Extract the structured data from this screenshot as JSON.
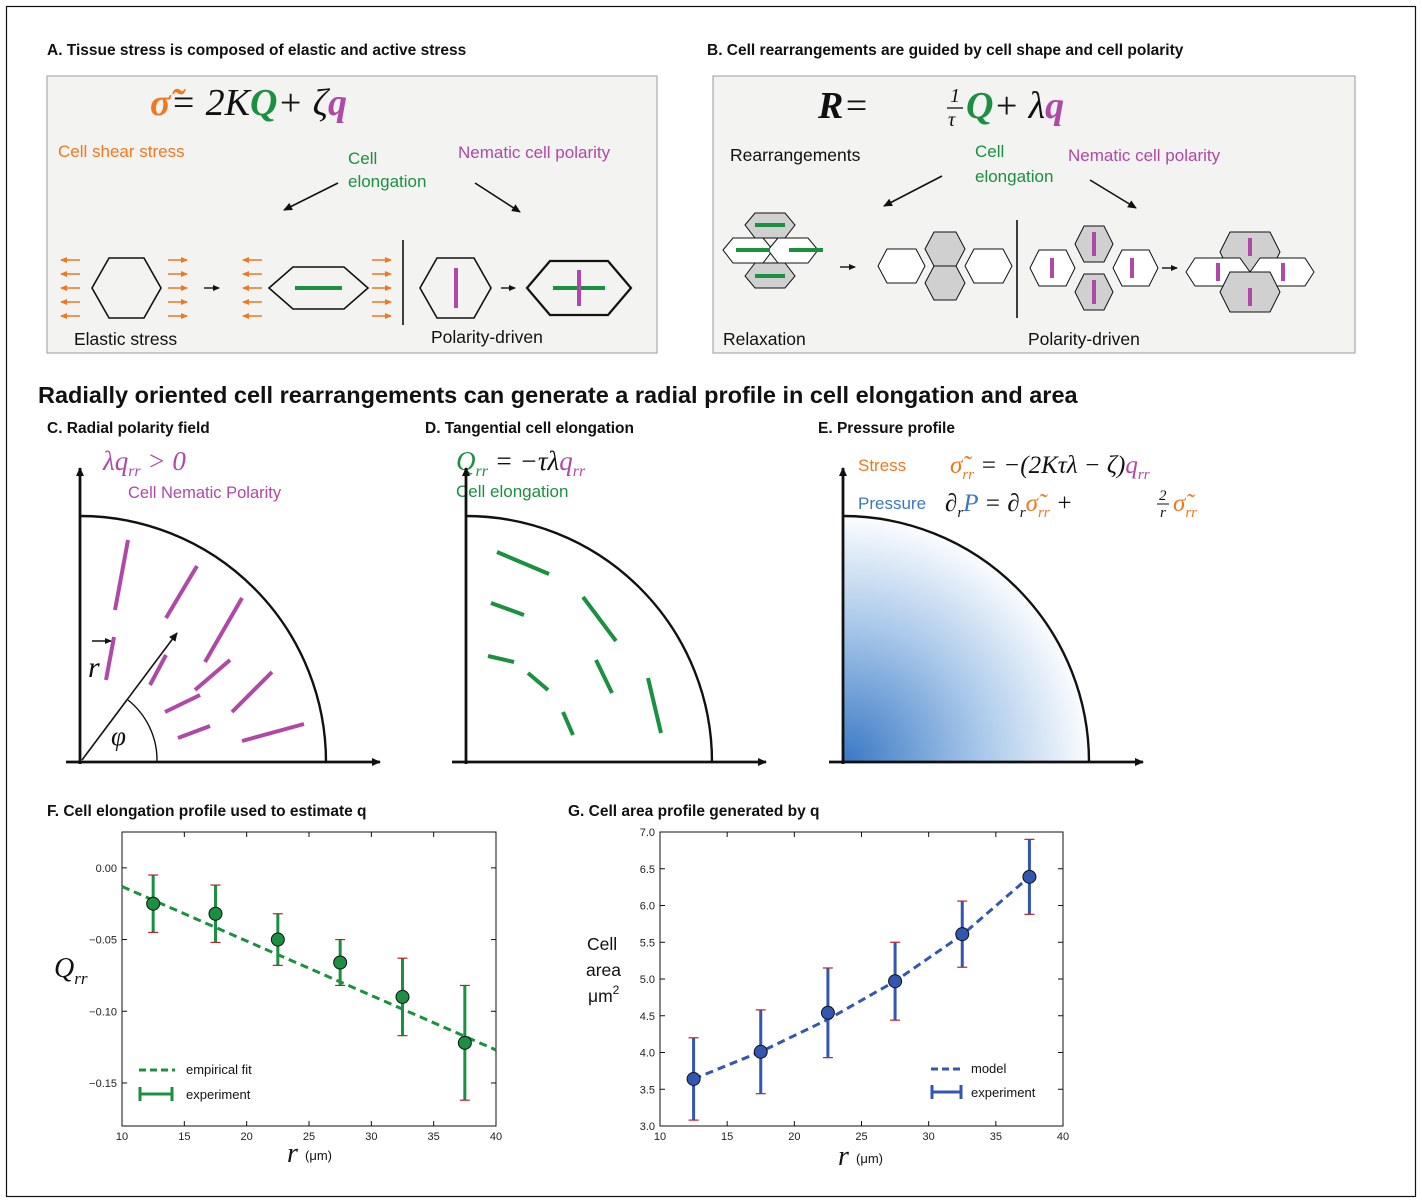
{
  "outer_border_color": "#000000",
  "colors": {
    "orange": "#f07820",
    "green": "#1a9040",
    "purple": "#b048a8",
    "blue": "#3a78c4",
    "box_bg": "#f3f3f1",
    "cell_grey": "#d0d0d0",
    "marker_blue": "#3356b0",
    "errorbar_red": "#c0202a"
  },
  "panel_a": {
    "title": "A. Tissue stress is composed of elastic and active stress",
    "equation_rhs": "= 2K",
    "equation_plus": "+ ζ",
    "label_stress": "Cell shear stress",
    "label_elong_1": "Cell",
    "label_elong_2": "elongation",
    "label_polarity": "Nematic cell polarity",
    "label_elastic": "Elastic stress",
    "label_polarity_driven": "Polarity-driven"
  },
  "panel_b": {
    "title": "B. Cell rearrangements are guided by cell shape and cell polarity",
    "equation_eq": "=",
    "equation_plus": "+ λ",
    "label_rearr": "Rearrangements",
    "label_elong_1": "Cell",
    "label_elong_2": "elongation",
    "label_polarity": "Nematic cell polarity",
    "label_relax": "Relaxation",
    "label_polarity_driven": "Polarity-driven"
  },
  "main_title": "Radially oriented cell rearrangements can generate a radial profile in cell elongation and area",
  "panel_c": {
    "title": "C. Radial polarity field",
    "equation": "λq",
    "equation_sub": "rr",
    "equation_tail": " > 0",
    "label": "Cell Nematic Polarity",
    "vec_label": "r",
    "angle_label": "φ"
  },
  "panel_d": {
    "title": "D. Tangential cell elongation",
    "eq_left": "Q",
    "eq_left_sub": "rr",
    "eq_mid": " = −τλ",
    "eq_right": "q",
    "eq_right_sub": "rr",
    "label": "Cell elongation"
  },
  "panel_e": {
    "title": "E. Pressure profile",
    "stress_label": "Stress",
    "stress_eq_sigma": "σ̃",
    "stress_eq_sub": "rr",
    "stress_eq_mid": " = −(2Kτλ − ζ)",
    "stress_eq_q": "q",
    "stress_eq_qsub": "rr",
    "pressure_label": "Pressure",
    "pressure_eq_1": "∂",
    "pressure_eq_1sub": "r",
    "pressure_eq_P": "P",
    "pressure_eq_2": " = ∂",
    "pressure_eq_2sub": "r",
    "pressure_eq_sig1": "σ̃",
    "pressure_eq_sig1sub": "rr",
    "pressure_eq_plus": " + ",
    "pressure_eq_frac_num": "2",
    "pressure_eq_frac_den": "r",
    "pressure_eq_sig2": "σ̃",
    "pressure_eq_sig2sub": "rr"
  },
  "panel_f": {
    "title": "F. Cell elongation profile used to estimate q",
    "ylabel_main": "Q",
    "ylabel_sub": "rr",
    "xlabel_main": "r",
    "xlabel_unit": "(μm)",
    "legend_fit": "empirical fit",
    "legend_exp": "experiment"
  },
  "panel_g": {
    "title": "G. Cell area profile generated by q",
    "ylabel_1": "Cell",
    "ylabel_2": "area",
    "ylabel_3": "μm",
    "ylabel_sup": "2",
    "xlabel_main": "r",
    "xlabel_unit": "(μm)",
    "legend_model": "model",
    "legend_exp": "experiment"
  },
  "chart_data": [
    {
      "type": "scatter",
      "title": "F. Cell elongation profile used to estimate q",
      "xlabel": "r (μm)",
      "ylabel": "Q_rr",
      "xlim": [
        10,
        40
      ],
      "ylim": [
        -0.18,
        0.025
      ],
      "xticks": [
        10,
        15,
        20,
        25,
        30,
        35,
        40
      ],
      "yticks": [
        0.0,
        -0.05,
        -0.1,
        -0.15
      ],
      "ytick_labels": [
        "0.00",
        "−0.05",
        "−0.10",
        "−0.15"
      ],
      "series": [
        {
          "name": "experiment",
          "x": [
            12.5,
            17.5,
            22.5,
            27.5,
            32.5,
            37.5
          ],
          "y": [
            -0.025,
            -0.032,
            -0.05,
            -0.066,
            -0.09,
            -0.122
          ],
          "err": [
            0.02,
            0.02,
            0.018,
            0.016,
            0.027,
            0.04
          ],
          "color": "#1a9040"
        },
        {
          "name": "empirical fit",
          "line": [
            [
              10,
              -0.013
            ],
            [
              40,
              -0.127
            ]
          ],
          "color": "#1a9040",
          "dashed": true
        }
      ],
      "legend": "bottom-left"
    },
    {
      "type": "scatter",
      "title": "G. Cell area profile generated by q",
      "xlabel": "r (μm)",
      "ylabel": "Cell area μm²",
      "xlim": [
        10,
        40
      ],
      "ylim": [
        3.0,
        7.0
      ],
      "xticks": [
        10,
        15,
        20,
        25,
        30,
        35,
        40
      ],
      "yticks": [
        3.0,
        3.5,
        4.0,
        4.5,
        5.0,
        5.5,
        6.0,
        6.5,
        7.0
      ],
      "ytick_labels": [
        "3.0",
        "3.5",
        "4.0",
        "4.5",
        "5.0",
        "5.5",
        "6.0",
        "6.5",
        "7.0"
      ],
      "series": [
        {
          "name": "experiment",
          "x": [
            12.5,
            17.5,
            22.5,
            27.5,
            32.5,
            37.5
          ],
          "y": [
            3.64,
            4.01,
            4.54,
            4.97,
            5.61,
            6.39
          ],
          "err": [
            0.56,
            0.57,
            0.61,
            0.53,
            0.45,
            0.51
          ],
          "color": "#3356b0"
        },
        {
          "name": "model",
          "x": [
            12.5,
            17.5,
            22.5,
            27.5,
            32.5,
            37.5
          ],
          "y": [
            3.64,
            4.01,
            4.45,
            4.97,
            5.6,
            6.39
          ],
          "color": "#3356b0",
          "dashed": true
        }
      ],
      "legend": "bottom-right"
    }
  ]
}
